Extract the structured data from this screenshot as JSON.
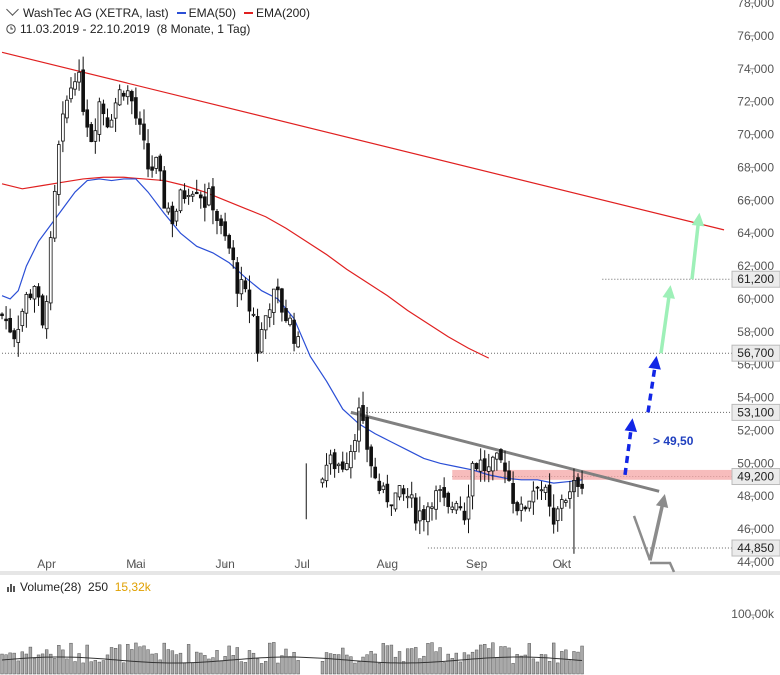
{
  "header": {
    "instrument": "WashTec AG (XETRA, last)",
    "ema50_label": "EMA(50)",
    "ema200_label": "EMA(200)",
    "range": "11.03.2019 - 22.10.2019",
    "period": "(8 Monate, 1 Tag)"
  },
  "colors": {
    "ema50": "#2b4fd6",
    "ema200": "#e02020",
    "candle": "#111111",
    "resistance_zone": "#f4a6a6",
    "blue_arrow": "#1226e6",
    "green_arrow": "#9ef0b8",
    "gray_arrow": "#8c8c8c",
    "trendline": "#808080",
    "volume_bar": "#a9a9a9",
    "volume_ma": "#333333"
  },
  "volume": {
    "label": "Volume(28)",
    "value": "250",
    "ma_value": "15,32k",
    "tick": "100,00k"
  },
  "annotation": "> 49,50",
  "chart_data": {
    "type": "candlestick",
    "x_ticks": [
      "Apr",
      "Mai",
      "Jun",
      "Jul",
      "Aug",
      "Sep",
      "Okt"
    ],
    "y_ticks": [
      "44,000",
      "46,000",
      "48,000",
      "50,000",
      "52,000",
      "54,000",
      "56,000",
      "58,000",
      "60,000",
      "62,000",
      "64,000",
      "66,000",
      "68,000",
      "70,000",
      "72,000",
      "74,000",
      "76,000",
      "78,000"
    ],
    "ylim": [
      44,
      78
    ],
    "levels": [
      "61,200",
      "56,700",
      "53,100",
      "49,200",
      "44,850"
    ],
    "resistance_zone": [
      49.0,
      49.6
    ],
    "series_names": [
      "EMA(50)",
      "EMA(200)"
    ],
    "price_path": [
      [
        0,
        59
      ],
      [
        3,
        58
      ],
      [
        6,
        60
      ],
      [
        8,
        61
      ],
      [
        10,
        58
      ],
      [
        12,
        63
      ],
      [
        14,
        69
      ],
      [
        16,
        72
      ],
      [
        18,
        74
      ],
      [
        20,
        72
      ],
      [
        22,
        70
      ],
      [
        24,
        72
      ],
      [
        26,
        71
      ],
      [
        28,
        72
      ],
      [
        30,
        73
      ],
      [
        32,
        72
      ],
      [
        34,
        70
      ],
      [
        36,
        68
      ],
      [
        38,
        68
      ],
      [
        40,
        66
      ],
      [
        42,
        65
      ],
      [
        44,
        66
      ],
      [
        46,
        67
      ],
      [
        48,
        67
      ],
      [
        50,
        66
      ],
      [
        52,
        66
      ],
      [
        54,
        64
      ],
      [
        56,
        63
      ],
      [
        58,
        61
      ],
      [
        60,
        60
      ],
      [
        62,
        59
      ],
      [
        63,
        57
      ],
      [
        64,
        58
      ],
      [
        66,
        60
      ],
      [
        68,
        60
      ],
      [
        70,
        59
      ],
      [
        72,
        58
      ],
      [
        73,
        57
      ],
      [
        78,
        49
      ],
      [
        80,
        50
      ],
      [
        82,
        50
      ],
      [
        84,
        50
      ],
      [
        86,
        51
      ],
      [
        88,
        53
      ],
      [
        90,
        51
      ],
      [
        92,
        49
      ],
      [
        94,
        48
      ],
      [
        96,
        48
      ],
      [
        98,
        48
      ],
      [
        100,
        48
      ],
      [
        102,
        47
      ],
      [
        104,
        47
      ],
      [
        106,
        48
      ],
      [
        108,
        48
      ],
      [
        110,
        47
      ],
      [
        112,
        48
      ],
      [
        114,
        47
      ],
      [
        116,
        50
      ],
      [
        118,
        50
      ],
      [
        120,
        49.5
      ],
      [
        122,
        50
      ],
      [
        124,
        50
      ],
      [
        126,
        48
      ],
      [
        128,
        47
      ],
      [
        130,
        48
      ],
      [
        132,
        49
      ],
      [
        134,
        48
      ],
      [
        136,
        46
      ],
      [
        138,
        48
      ],
      [
        140,
        48
      ],
      [
        142,
        49
      ],
      [
        143,
        49
      ]
    ],
    "ema50": [
      [
        0,
        60.2
      ],
      [
        2,
        60.0
      ],
      [
        4,
        60.5
      ],
      [
        6,
        62
      ],
      [
        9,
        63.5
      ],
      [
        12,
        64.5
      ],
      [
        15,
        65.5
      ],
      [
        18,
        66.5
      ],
      [
        21,
        67.2
      ],
      [
        24,
        67.3
      ],
      [
        27,
        67.2
      ],
      [
        30,
        67.3
      ],
      [
        33,
        67.3
      ],
      [
        36,
        66.5
      ],
      [
        40,
        65.2
      ],
      [
        44,
        64.0
      ],
      [
        48,
        63.2
      ],
      [
        52,
        62.8
      ],
      [
        56,
        62.2
      ],
      [
        60,
        61.3
      ],
      [
        64,
        60.5
      ],
      [
        68,
        60.0
      ],
      [
        72,
        58.8
      ],
      [
        76,
        56.5
      ],
      [
        80,
        55.0
      ],
      [
        84,
        53.3
      ],
      [
        88,
        52.4
      ],
      [
        92,
        51.8
      ],
      [
        96,
        51.3
      ],
      [
        100,
        50.8
      ],
      [
        104,
        50.3
      ],
      [
        108,
        50.0
      ],
      [
        112,
        49.8
      ],
      [
        116,
        49.6
      ],
      [
        120,
        49.3
      ],
      [
        124,
        49.1
      ],
      [
        128,
        49.0
      ],
      [
        132,
        49.0
      ],
      [
        136,
        48.8
      ],
      [
        140,
        48.9
      ],
      [
        143,
        49.0
      ]
    ],
    "ema200": [
      [
        0,
        67.0
      ],
      [
        5,
        66.7
      ],
      [
        10,
        66.9
      ],
      [
        15,
        67.1
      ],
      [
        20,
        67.3
      ],
      [
        25,
        67.4
      ],
      [
        30,
        67.4
      ],
      [
        35,
        67.3
      ],
      [
        40,
        67.2
      ],
      [
        45,
        66.9
      ],
      [
        50,
        66.5
      ],
      [
        55,
        66.0
      ],
      [
        60,
        65.5
      ],
      [
        65,
        65.0
      ],
      [
        70,
        64.3
      ],
      [
        75,
        63.5
      ],
      [
        80,
        62.7
      ],
      [
        85,
        61.8
      ],
      [
        90,
        61.0
      ],
      [
        95,
        60.2
      ],
      [
        100,
        59.3
      ],
      [
        105,
        58.5
      ],
      [
        110,
        57.7
      ],
      [
        115,
        57.0
      ],
      [
        120,
        56.4
      ]
    ],
    "long_downtrend_line": [
      [
        0,
        75.0
      ],
      [
        178,
        64.2
      ]
    ],
    "short_downtrend_line": [
      [
        86,
        53.1
      ],
      [
        162,
        48.3
      ]
    ]
  }
}
